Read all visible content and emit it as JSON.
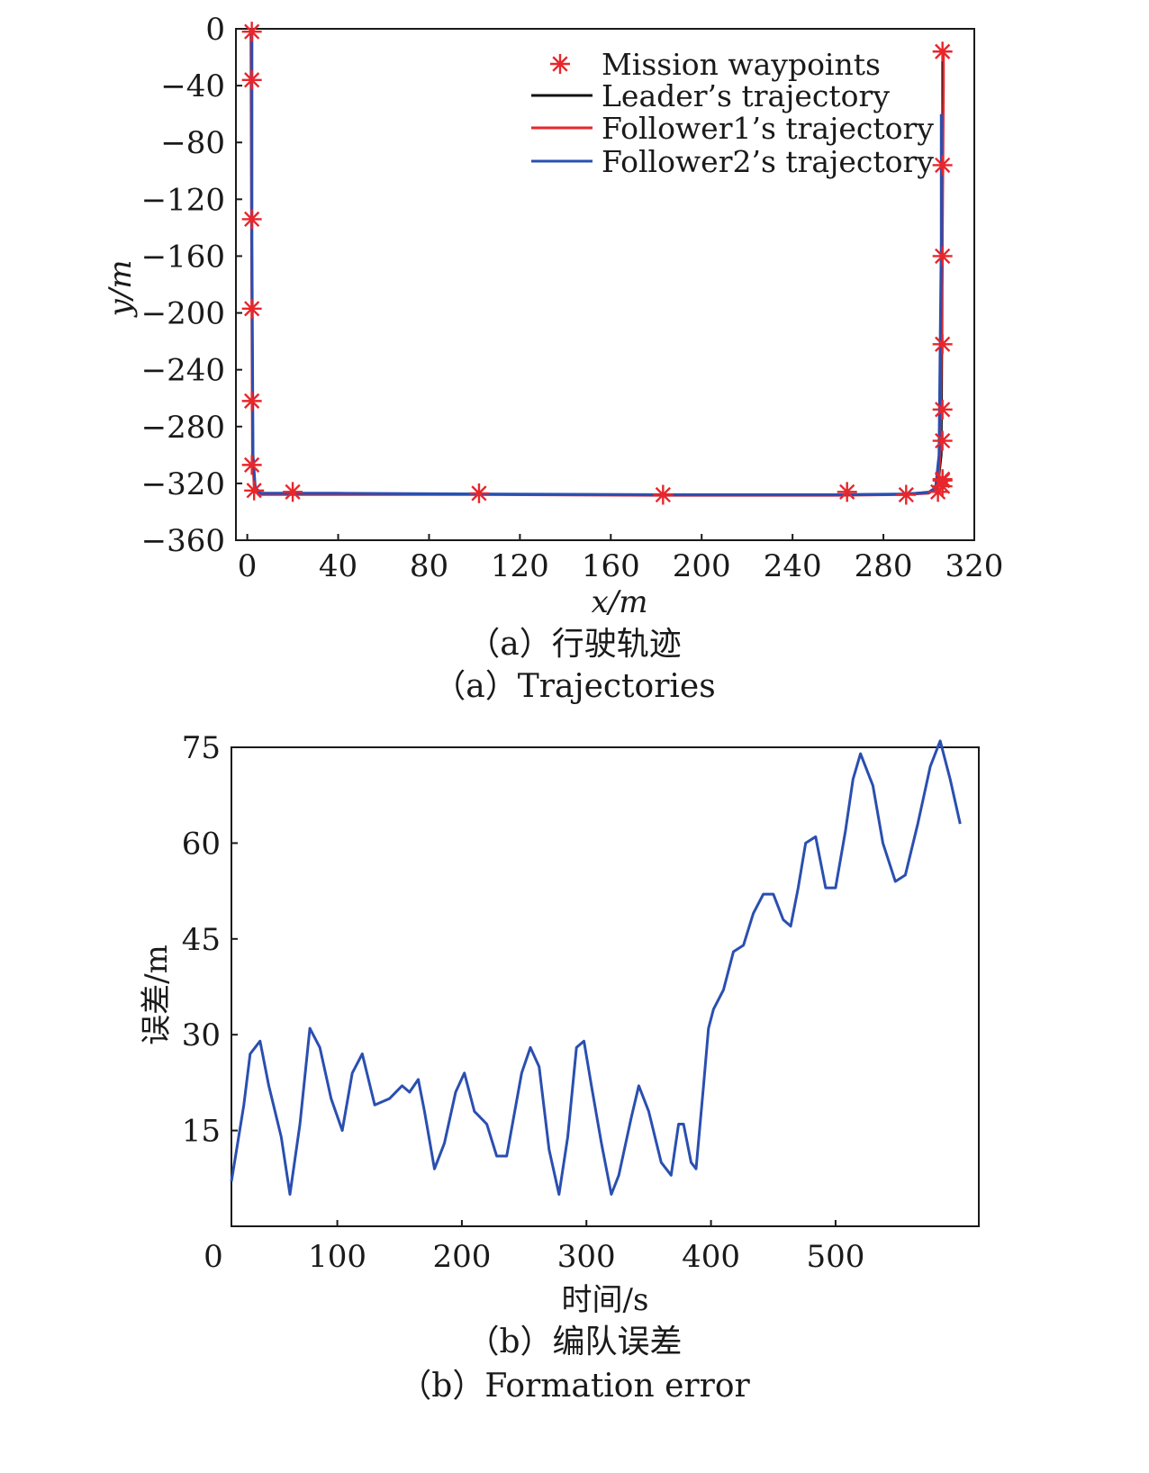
{
  "figure_a": {
    "caption_cn": "（a）行驶轨迹",
    "caption_en": "（a）Trajectories"
  },
  "figure_b": {
    "caption_cn": "（b）编队误差",
    "caption_en": "（b）Formation error"
  },
  "chart_data": [
    {
      "type": "line",
      "xlabel": "x/m",
      "ylabel": "y/m",
      "xlim": [
        -5,
        320
      ],
      "ylim": [
        -360,
        0
      ],
      "xticks": [
        0,
        40,
        80,
        120,
        160,
        200,
        240,
        280,
        320
      ],
      "yticks": [
        0,
        -40,
        -80,
        -120,
        -160,
        -200,
        -240,
        -280,
        -320,
        -360
      ],
      "grid": false,
      "legend_position": "top-right",
      "series": [
        {
          "name": "Mission waypoints",
          "style": "marker-star",
          "color": "#e8262b",
          "x": [
            2,
            2,
            2,
            2,
            2,
            2,
            3,
            20,
            102,
            183,
            264,
            290,
            304,
            306,
            306,
            306,
            306,
            306,
            306,
            306,
            306,
            306
          ],
          "y": [
            -2,
            -36,
            -134,
            -197,
            -262,
            -307,
            -325,
            -326,
            -327,
            -328,
            -326,
            -328,
            -326,
            -317,
            -290,
            -268,
            -222,
            -160,
            -96,
            -16,
            -322,
            -318
          ]
        },
        {
          "name": "Leader's trajectory",
          "style": "line",
          "color": "#111111",
          "x": [
            2,
            2,
            2.5,
            3,
            5,
            12,
            40,
            100,
            180,
            260,
            290,
            300,
            304,
            305.5,
            306,
            306,
            306
          ],
          "y": [
            -2,
            -150,
            -300,
            -322,
            -327,
            -327.5,
            -327.5,
            -327.5,
            -328,
            -328,
            -327.5,
            -326,
            -322,
            -300,
            -150,
            -40,
            -16
          ]
        },
        {
          "name": "Follower1's trajectory",
          "style": "line",
          "color": "#e8262b",
          "x": [
            1.5,
            1.8,
            2.2,
            3,
            6,
            14,
            40,
            100,
            180,
            260,
            290,
            300,
            304,
            305,
            306,
            306.5,
            306.5
          ],
          "y": [
            -2,
            -150,
            -300,
            -323,
            -328,
            -328,
            -328,
            -328,
            -328.5,
            -328.5,
            -328,
            -327,
            -323,
            -300,
            -150,
            -40,
            -16
          ]
        },
        {
          "name": "Follower2's trajectory",
          "style": "line",
          "color": "#2a4fb0",
          "x": [
            2,
            2,
            2.5,
            3.5,
            6,
            14,
            40,
            100,
            180,
            260,
            290,
            300,
            303,
            304.5,
            305.5,
            305.5,
            305.5
          ],
          "y": [
            -2,
            -150,
            -300,
            -323,
            -327,
            -327,
            -327,
            -327.5,
            -328,
            -328,
            -327.5,
            -326.5,
            -323,
            -300,
            -150,
            -100,
            -60
          ]
        }
      ]
    },
    {
      "type": "line",
      "xlabel": "时间/s",
      "ylabel": "误差/m",
      "xlim": [
        15,
        615
      ],
      "ylim": [
        0,
        75
      ],
      "xticks": [
        0,
        100,
        200,
        300,
        400,
        500
      ],
      "yticks": [
        15,
        30,
        45,
        60,
        75
      ],
      "grid": false,
      "series": [
        {
          "color": "#2a4fb0",
          "x": [
            15,
            25,
            30,
            38,
            45,
            55,
            62,
            70,
            78,
            86,
            95,
            104,
            112,
            120,
            130,
            142,
            152,
            158,
            165,
            170,
            178,
            186,
            195,
            202,
            210,
            220,
            228,
            236,
            248,
            255,
            262,
            270,
            278,
            285,
            292,
            298,
            304,
            312,
            320,
            326,
            336,
            342,
            350,
            360,
            368,
            374,
            378,
            384,
            388,
            394,
            398,
            402,
            410,
            418,
            426,
            434,
            442,
            450,
            458,
            464,
            470,
            476,
            484,
            492,
            500,
            508,
            514,
            520,
            530,
            538,
            548,
            556,
            566,
            576,
            584,
            592,
            600
          ],
          "y": [
            7,
            19,
            27,
            29,
            22,
            14,
            5,
            16,
            31,
            28,
            20,
            15,
            24,
            27,
            19,
            20,
            22,
            21,
            23,
            18,
            9,
            13,
            21,
            24,
            18,
            16,
            11,
            11,
            24,
            28,
            25,
            12,
            5,
            14,
            28,
            29,
            22,
            13,
            5,
            8,
            17,
            22,
            18,
            10,
            8,
            16,
            16,
            10,
            9,
            22,
            31,
            34,
            37,
            43,
            44,
            49,
            52,
            52,
            48,
            47,
            53,
            60,
            61,
            53,
            53,
            62,
            70,
            74,
            69,
            60,
            54,
            55,
            63,
            72,
            76,
            70,
            63
          ]
        }
      ]
    }
  ]
}
